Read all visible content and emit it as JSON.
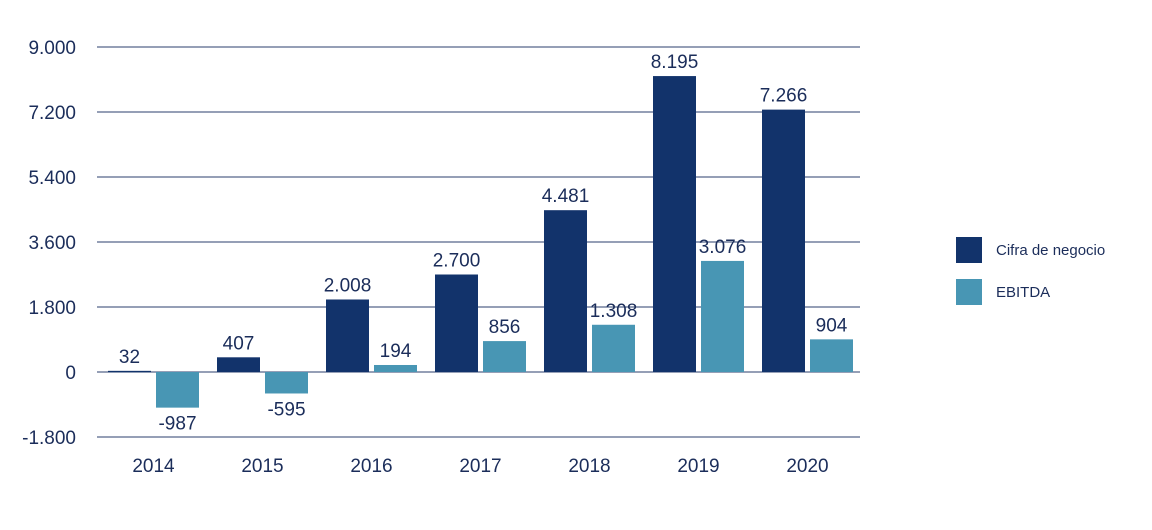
{
  "chart_data": {
    "type": "bar",
    "categories": [
      "2014",
      "2015",
      "2016",
      "2017",
      "2018",
      "2019",
      "2020"
    ],
    "series": [
      {
        "name": "Cifra de negocio",
        "color": "#12336b",
        "values": [
          32,
          407,
          2008,
          2700,
          4481,
          8195,
          7266
        ],
        "labels": [
          "32",
          "407",
          "2.008",
          "2.700",
          "4.481",
          "8.195",
          "7.266"
        ]
      },
      {
        "name": "EBITDA",
        "color": "#4896b4",
        "values": [
          -987,
          -595,
          194,
          856,
          1308,
          3076,
          904
        ],
        "labels": [
          "-987",
          "-595",
          "194",
          "856",
          "1.308",
          "3.076",
          "904"
        ]
      }
    ],
    "yticks": [
      "9.000",
      "7.200",
      "5.400",
      "3.600",
      "1.800",
      "0",
      "-1.800"
    ],
    "ytick_values": [
      9000,
      7200,
      5400,
      3600,
      1800,
      0,
      -1800
    ],
    "ylim": [
      -1800,
      9000
    ],
    "grid": true,
    "legend_position": "right"
  }
}
